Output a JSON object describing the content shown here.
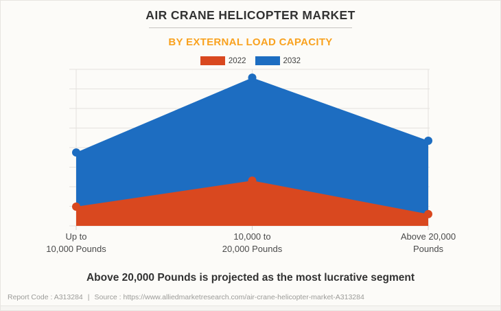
{
  "header": {
    "title": "AIR CRANE HELICOPTER MARKET",
    "subtitle": "BY EXTERNAL LOAD CAPACITY"
  },
  "caption": "Above 20,000 Pounds is projected as the most lucrative segment",
  "footer": {
    "report_code": "Report Code : A313284",
    "separator": "|",
    "source": "Source : https://www.alliedmarketresearch.com/air-crane-helicopter-market-A313284"
  },
  "colors": {
    "accent_subtitle": "#F9A21F",
    "grid": "#E4E2DE",
    "axis_label": "#4A4A4A"
  },
  "chart_data": {
    "type": "area",
    "title": "AIR CRANE HELICOPTER MARKET",
    "subtitle": "BY EXTERNAL LOAD CAPACITY",
    "categories": [
      "Up to 10,000 Pounds",
      "10,000 to 20,000 Pounds",
      "Above 20,000 Pounds"
    ],
    "category_lines": [
      [
        "Up to",
        "10,000 Pounds"
      ],
      [
        "10,000 to",
        "20,000 Pounds"
      ],
      [
        "Above 20,000",
        "Pounds"
      ]
    ],
    "series": [
      {
        "name": "2022",
        "color": "#D9481F",
        "values": [
          12.3,
          28.9,
          7.5
        ]
      },
      {
        "name": "2032",
        "color": "#1D6DC1",
        "values": [
          46.9,
          94.7,
          54.4
        ]
      }
    ],
    "value_unit": "relative height, % of plot (no y-axis value labels shown)",
    "ylim": [
      0,
      100
    ],
    "y_gridline_count": 9,
    "grid": "horizontal-and-category-verticals",
    "legend_position": "top",
    "marker": "circle"
  }
}
